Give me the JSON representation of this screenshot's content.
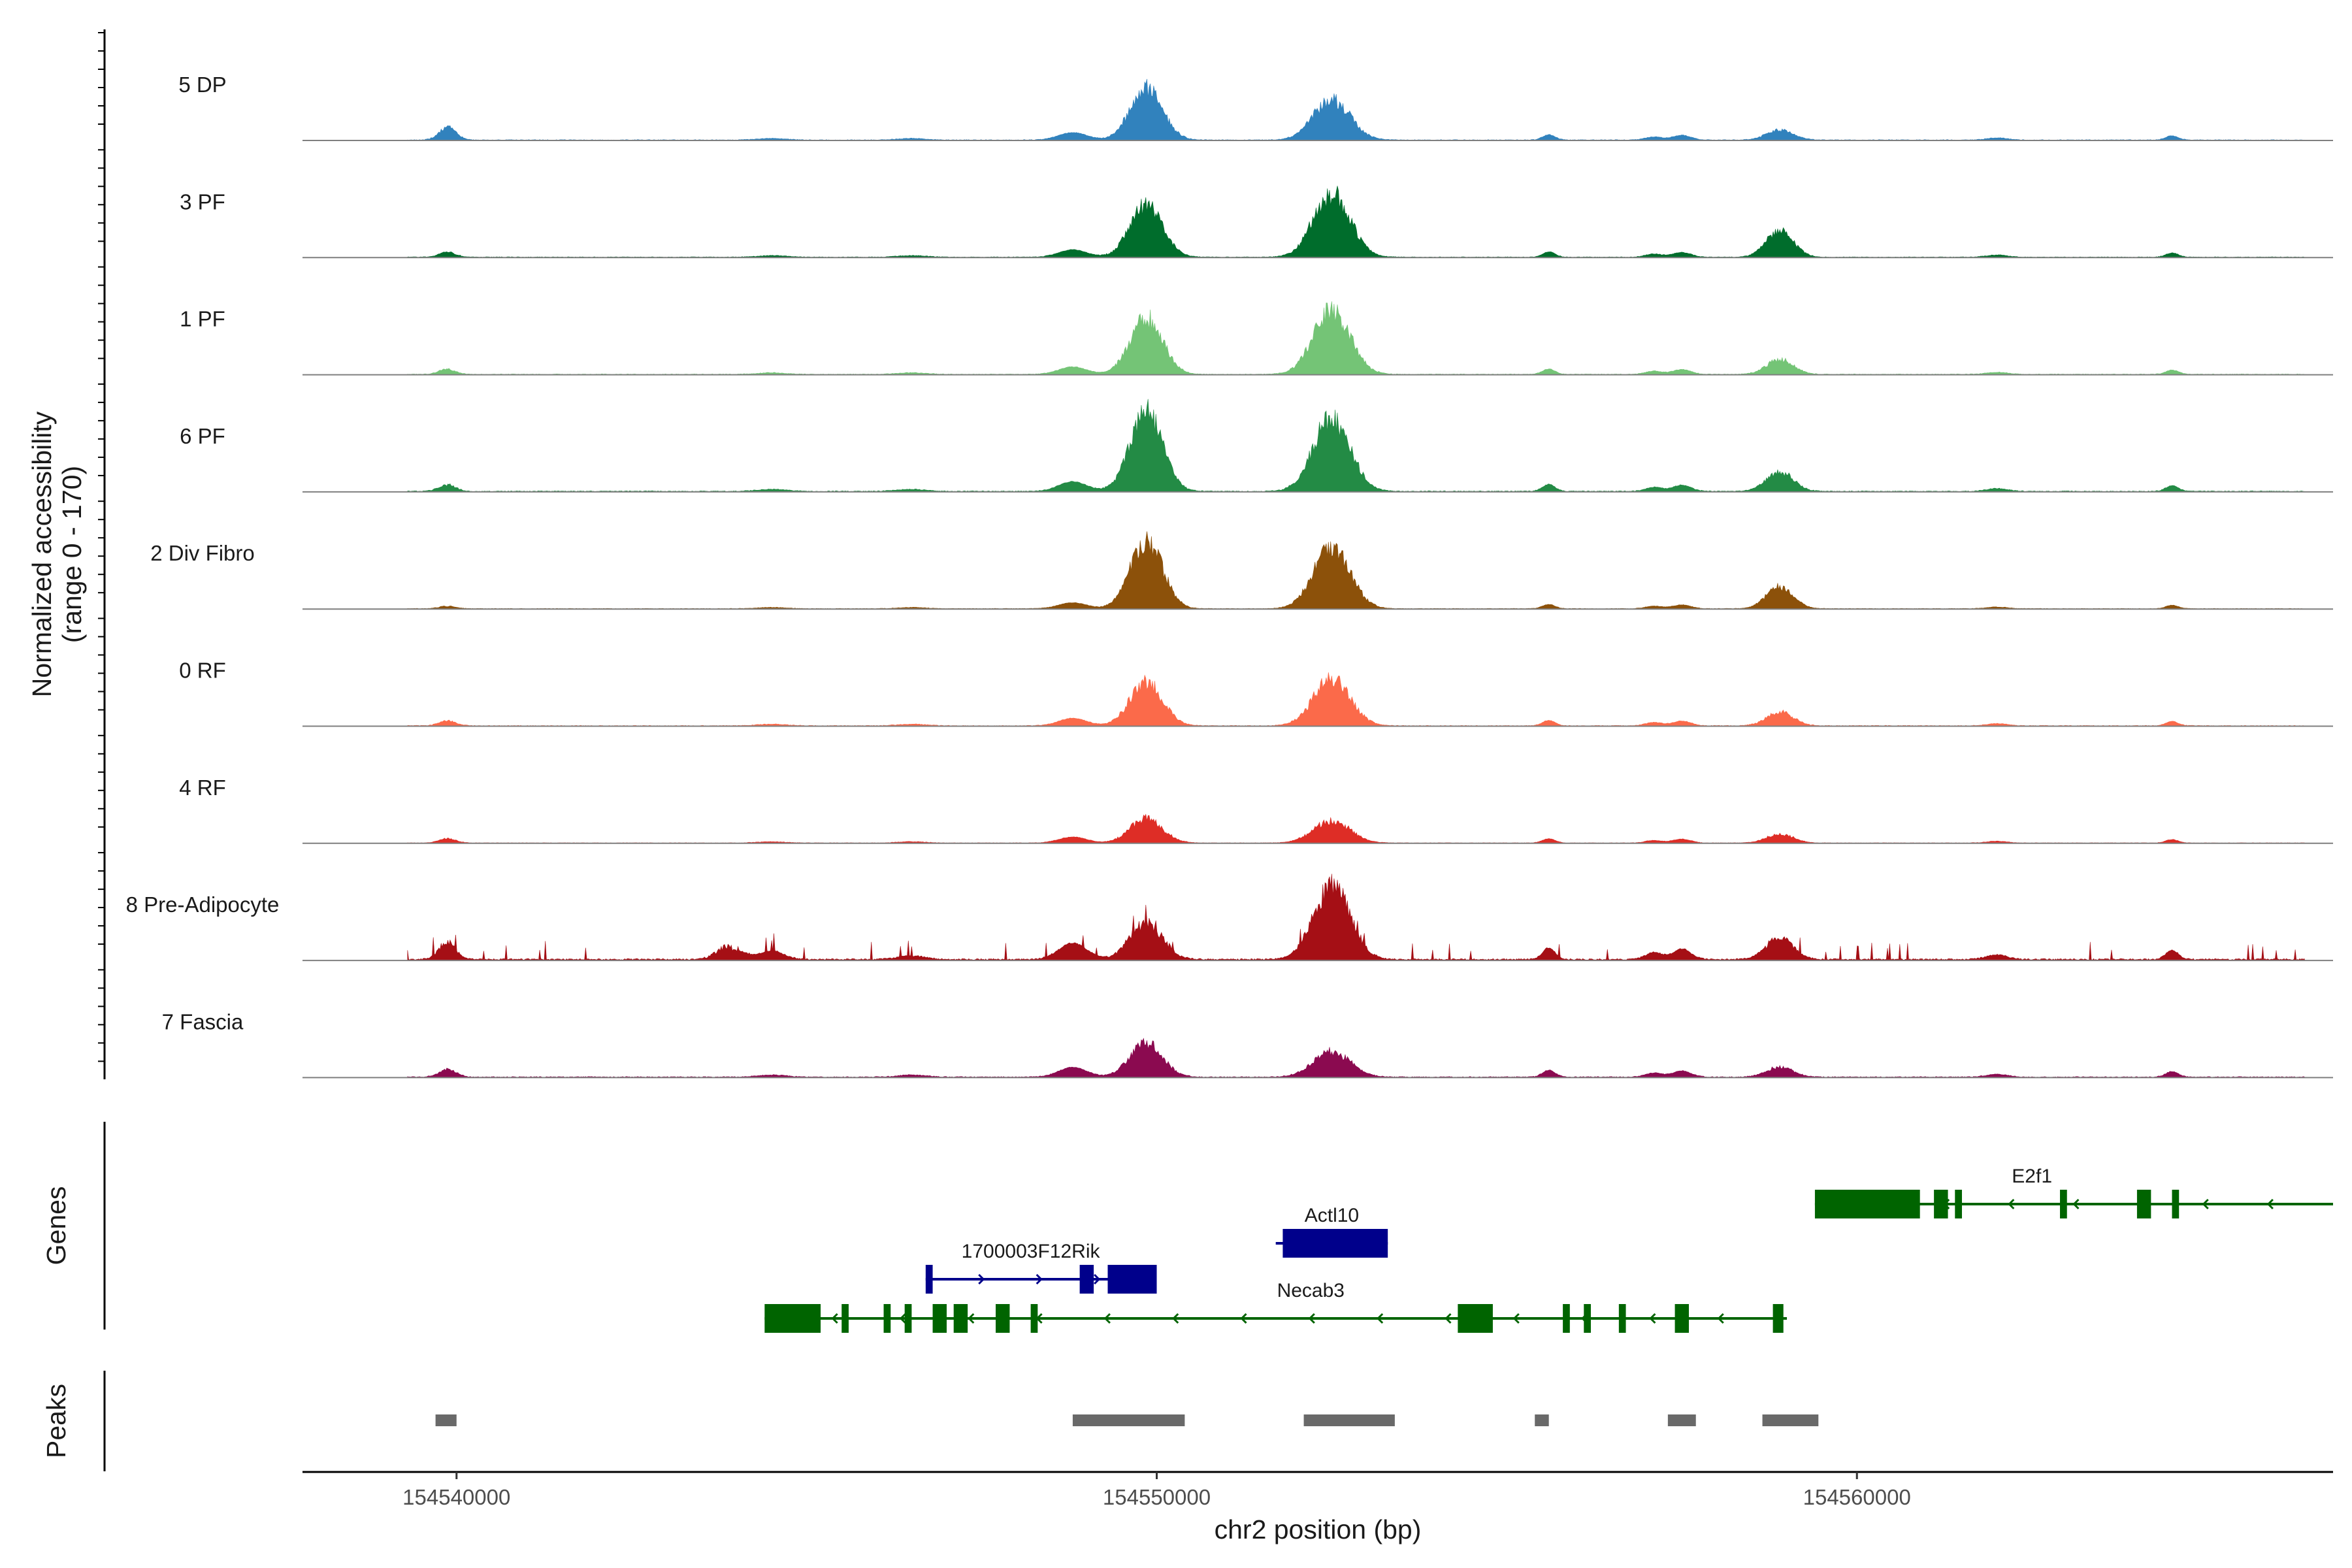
{
  "chart_data": {
    "type": "area",
    "y_axis_title": [
      "Normalized accessibility",
      "(range 0 - 170)"
    ],
    "ylim": [
      0,
      170
    ],
    "xlabel": "chr2 position (bp)",
    "xlim": [
      154537800,
      154566800
    ],
    "x_ticks": [
      154540000,
      154550000,
      154560000
    ],
    "x_tick_labels": [
      "154540000",
      "154550000",
      "154560000"
    ],
    "peak_centers": [
      154539870,
      154549850,
      154552500,
      154558900
    ],
    "tracks": [
      {
        "name": "5 DP",
        "color": "#3182bd",
        "amplitudes": [
          26,
          105,
          82,
          20,
          1.0
        ]
      },
      {
        "name": "3 PF",
        "color": "#006d2c",
        "amplitudes": [
          10,
          105,
          130,
          56,
          1.0
        ]
      },
      {
        "name": "1 PF",
        "color": "#74c476",
        "amplitudes": [
          10,
          115,
          130,
          30,
          1.0
        ]
      },
      {
        "name": "6 PF",
        "color": "#238b45",
        "amplitudes": [
          13,
          165,
          150,
          40,
          1.3
        ]
      },
      {
        "name": "2 Div Fibro",
        "color": "#8c510a",
        "amplitudes": [
          5,
          140,
          125,
          45,
          0.8
        ]
      },
      {
        "name": "0 RF",
        "color": "#fb6a4a",
        "amplitudes": [
          10,
          90,
          95,
          28,
          1.0
        ]
      },
      {
        "name": "4 RF",
        "color": "#de2d26",
        "amplitudes": [
          9,
          50,
          45,
          18,
          0.8
        ]
      },
      {
        "name": "8 Pre-Adipocyte",
        "color": "#a50f15",
        "amplitudes": [
          35,
          75,
          150,
          45,
          2.2
        ]
      },
      {
        "name": "7 Fascia",
        "color": "#8b0a50",
        "amplitudes": [
          16,
          70,
          52,
          20,
          1.3
        ]
      }
    ],
    "genes_title": "Genes",
    "genes": [
      {
        "name": "1700003F12Rik",
        "strand": "+",
        "color": "#00008b",
        "start": 154546700,
        "end": 154550000,
        "exons": [
          [
            154546700,
            154546800
          ],
          [
            154548900,
            154549100
          ],
          [
            154549300,
            154550000
          ]
        ]
      },
      {
        "name": "Actl10",
        "strand": "+",
        "color": "#00008b",
        "start": 154551700,
        "end": 154553300,
        "exons": [
          [
            154551800,
            154553300
          ]
        ]
      },
      {
        "name": "Necab3",
        "strand": "-",
        "color": "#006400",
        "start": 154544400,
        "end": 154559000,
        "exons": [
          [
            154544400,
            154545200
          ],
          [
            154545500,
            154545600
          ],
          [
            154546100,
            154546200
          ],
          [
            154546400,
            154546500
          ],
          [
            154546800,
            154547000
          ],
          [
            154547100,
            154547300
          ],
          [
            154547700,
            154547900
          ],
          [
            154548200,
            154548300
          ],
          [
            154554300,
            154554800
          ],
          [
            154555800,
            154555900
          ],
          [
            154556100,
            154556200
          ],
          [
            154556600,
            154556700
          ],
          [
            154557400,
            154557600
          ],
          [
            154558800,
            154558950
          ]
        ]
      },
      {
        "name": "E2f1",
        "strand": "-",
        "color": "#006400",
        "start": 154559400,
        "end": 154566800,
        "exons": [
          [
            154559400,
            154560900
          ],
          [
            154561100,
            154561300
          ],
          [
            154561400,
            154561500
          ],
          [
            154562900,
            154563000
          ],
          [
            154564000,
            154564200
          ],
          [
            154564500,
            154564600
          ]
        ]
      }
    ],
    "peaks_title": "Peaks",
    "peaks_color": "#696969",
    "peaks": [
      [
        154539700,
        154540000
      ],
      [
        154548800,
        154550400
      ],
      [
        154552100,
        154553400
      ],
      [
        154555400,
        154555600
      ],
      [
        154557300,
        154557700
      ],
      [
        154558650,
        154559450
      ]
    ]
  }
}
